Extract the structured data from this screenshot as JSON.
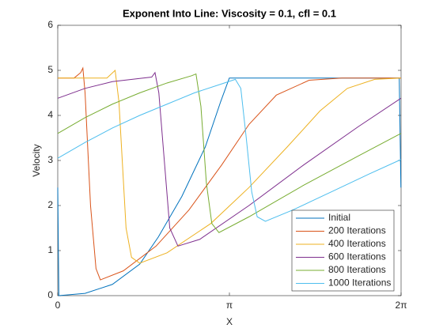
{
  "chart_data": {
    "type": "line",
    "title": "Exponent Into Line: Viscosity = 0.1, cfl = 0.1",
    "xlabel": "X",
    "ylabel": "Velocity",
    "xlim": [
      0,
      6.28319
    ],
    "ylim": [
      0,
      6
    ],
    "xticks": [
      0,
      {
        "value": 3.14159,
        "label": "π"
      },
      {
        "value": 6.28319,
        "label": "2π"
      }
    ],
    "yticks": [
      0,
      1,
      2,
      3,
      4,
      5,
      6
    ],
    "grid": false,
    "legend": "southeast",
    "series": [
      {
        "name": "Initial",
        "color": "#0072bd",
        "x": [
          0,
          0.02,
          0.5,
          1.0,
          1.5,
          1.84,
          2.27,
          2.7,
          2.98,
          3.14,
          6.25,
          6.28
        ],
        "values": [
          2.4,
          0,
          0.05,
          0.25,
          0.7,
          1.3,
          2.2,
          3.3,
          4.3,
          4.83,
          4.83,
          2.4
        ]
      },
      {
        "name": "200 Iterations",
        "color": "#d95319",
        "x": [
          0,
          0.3,
          0.42,
          0.46,
          0.5,
          0.6,
          0.7,
          0.78,
          1.2,
          1.8,
          2.4,
          3.0,
          3.5,
          4.0,
          4.6,
          5.2,
          6.28
        ],
        "values": [
          4.83,
          4.83,
          4.95,
          5.05,
          4.5,
          2.0,
          0.6,
          0.35,
          0.55,
          1.1,
          1.9,
          2.9,
          3.8,
          4.45,
          4.78,
          4.83,
          4.83
        ]
      },
      {
        "name": "400 Iterations",
        "color": "#edb120",
        "x": [
          0,
          0.9,
          1.05,
          1.12,
          1.25,
          1.35,
          1.5,
          2.0,
          2.8,
          3.5,
          4.2,
          4.8,
          5.3,
          5.8,
          6.28
        ],
        "values": [
          4.83,
          4.83,
          5.0,
          4.3,
          1.5,
          0.85,
          0.72,
          0.95,
          1.6,
          2.4,
          3.3,
          4.1,
          4.6,
          4.8,
          4.83
        ]
      },
      {
        "name": "600 Iterations",
        "color": "#7e2f8e",
        "x": [
          0,
          0.5,
          1.0,
          1.5,
          1.72,
          1.78,
          1.85,
          1.95,
          2.05,
          2.2,
          2.6,
          3.5,
          4.5,
          5.5,
          6.28
        ],
        "values": [
          4.38,
          4.6,
          4.75,
          4.82,
          4.85,
          4.95,
          4.5,
          3.0,
          1.5,
          1.1,
          1.25,
          2.0,
          2.9,
          3.75,
          4.38
        ]
      },
      {
        "name": "800 Iterations",
        "color": "#77ac30",
        "x": [
          0,
          0.5,
          1.0,
          1.5,
          2.0,
          2.45,
          2.53,
          2.62,
          2.72,
          2.82,
          2.95,
          3.5,
          4.5,
          5.5,
          6.28
        ],
        "values": [
          3.6,
          3.95,
          4.25,
          4.5,
          4.72,
          4.88,
          4.92,
          4.2,
          2.5,
          1.6,
          1.4,
          1.75,
          2.45,
          3.1,
          3.6
        ]
      },
      {
        "name": "1000 Iterations",
        "color": "#4dbeee",
        "x": [
          0,
          0.5,
          1.0,
          1.5,
          2.0,
          2.5,
          3.0,
          3.25,
          3.35,
          3.45,
          3.55,
          3.65,
          3.8,
          4.3,
          5.0,
          5.7,
          6.28
        ],
        "values": [
          3.05,
          3.4,
          3.72,
          4.0,
          4.25,
          4.5,
          4.7,
          4.8,
          4.6,
          3.5,
          2.3,
          1.75,
          1.65,
          1.9,
          2.3,
          2.7,
          3.02
        ]
      }
    ]
  }
}
